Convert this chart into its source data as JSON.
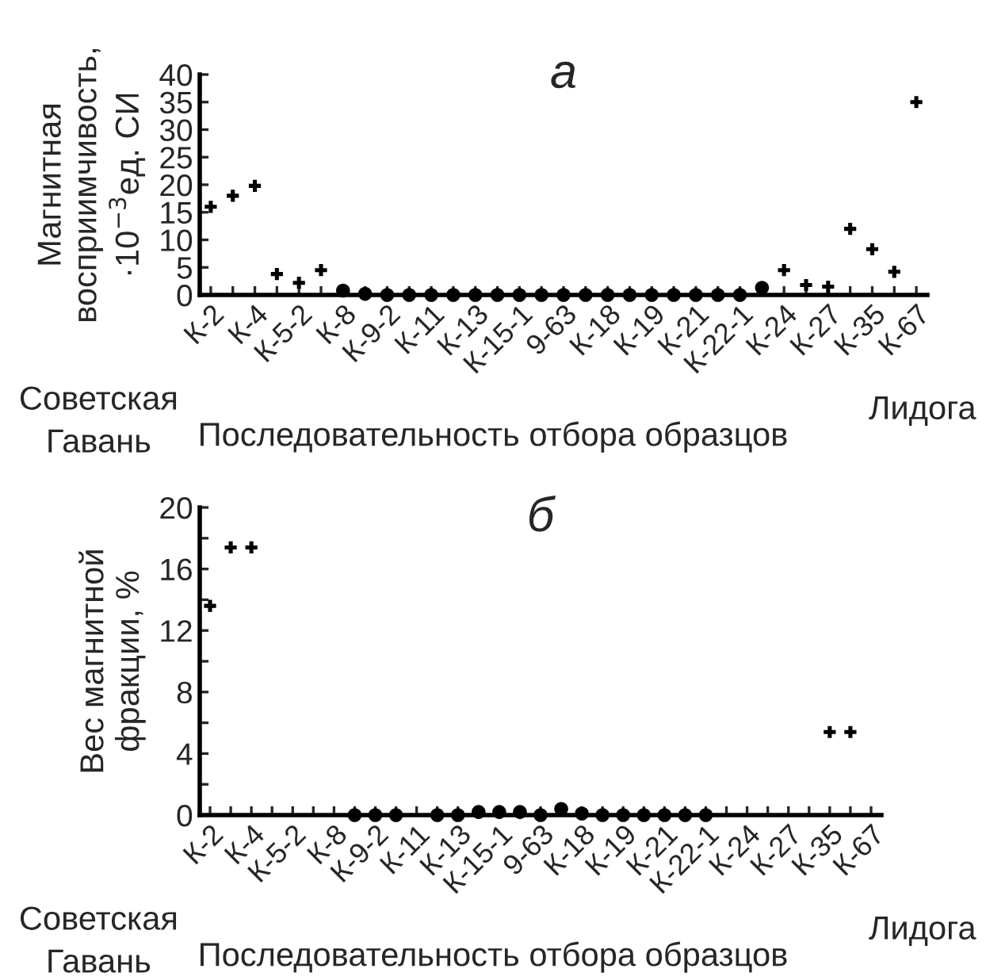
{
  "chart_data": [
    {
      "type": "scatter",
      "title": "а",
      "ylabel": "Магнитная\nвосприимчивость,\n·10$^{−3}$ед. СИ",
      "xlabel": "Последовательность отбора образцов",
      "categories": [
        "К-2",
        null,
        "К-4",
        null,
        "К-5-2",
        null,
        "К-8",
        null,
        "К-9-2",
        null,
        "К-11",
        null,
        "К-13",
        null,
        "К-15-1",
        null,
        "9-63",
        null,
        "К-18",
        null,
        "К-19",
        null,
        "К-21",
        null,
        "К-22-1",
        null,
        "К-24",
        null,
        "К-27",
        null,
        "К-35",
        null,
        "К-67"
      ],
      "series": [
        {
          "color": "#000000",
          "marker": "cross",
          "values": [
            16,
            18,
            19.8,
            3.8,
            2.2,
            4.5,
            null,
            null,
            null,
            null,
            null,
            null,
            null,
            null,
            null,
            null,
            null,
            null,
            null,
            null,
            null,
            null,
            null,
            null,
            null,
            null,
            4.5,
            1.8,
            1.5,
            12,
            8.3,
            4.2,
            35
          ]
        },
        {
          "color": "#000000",
          "marker": "circle",
          "values": [
            null,
            null,
            null,
            null,
            null,
            null,
            0.8,
            0.2,
            0,
            0,
            0,
            0,
            0,
            0,
            0,
            0,
            0,
            0,
            0,
            0,
            0,
            0,
            0,
            0,
            0,
            1.3,
            null,
            null,
            null,
            null,
            null,
            null,
            null
          ]
        }
      ],
      "ylim": [
        0,
        40
      ],
      "yticks": [
        0,
        5,
        10,
        15,
        20,
        25,
        30,
        35,
        40
      ],
      "grid": false,
      "legend": false,
      "annotations": [
        "Советская\nГавань",
        "Лидога"
      ]
    },
    {
      "type": "scatter",
      "title": "б",
      "ylabel": "Вес магнитной\nфракции, %",
      "xlabel": "Последовательность отбора образцов",
      "categories": [
        "К-2",
        null,
        "К-4",
        null,
        "К-5-2",
        null,
        "К-8",
        null,
        "К-9-2",
        null,
        "К-11",
        null,
        "К-13",
        null,
        "К-15-1",
        null,
        "9-63",
        null,
        "К-18",
        null,
        "К-19",
        null,
        "К-21",
        null,
        "К-22-1",
        null,
        "К-24",
        null,
        "К-27",
        null,
        "К-35",
        null,
        "К-67"
      ],
      "series": [
        {
          "color": "#000000",
          "marker": "cross",
          "values": [
            13.6,
            17.4,
            17.4,
            null,
            null,
            null,
            null,
            null,
            null,
            null,
            null,
            null,
            null,
            null,
            null,
            null,
            null,
            null,
            null,
            null,
            null,
            null,
            null,
            null,
            null,
            null,
            null,
            null,
            null,
            null,
            5.4,
            5.4,
            null
          ]
        },
        {
          "color": "#000000",
          "marker": "circle",
          "values": [
            null,
            null,
            null,
            null,
            null,
            null,
            null,
            0,
            0,
            0,
            null,
            0,
            0,
            0.2,
            0.2,
            0.2,
            0,
            0.4,
            0.1,
            0,
            0,
            0,
            0,
            0,
            0,
            null,
            null,
            null,
            null,
            null,
            null,
            null,
            null
          ]
        }
      ],
      "ylim": [
        0,
        20
      ],
      "yticks": [
        0,
        {
          "value": 2,
          "label": null
        },
        4,
        {
          "value": 6,
          "label": null
        },
        8,
        {
          "value": 10,
          "label": null
        },
        12,
        {
          "value": 14,
          "label": null
        },
        16,
        {
          "value": 18,
          "label": null
        },
        20
      ],
      "grid": false,
      "legend": false,
      "annotations": [
        "Советская\nГавань",
        "Лидога"
      ]
    }
  ]
}
